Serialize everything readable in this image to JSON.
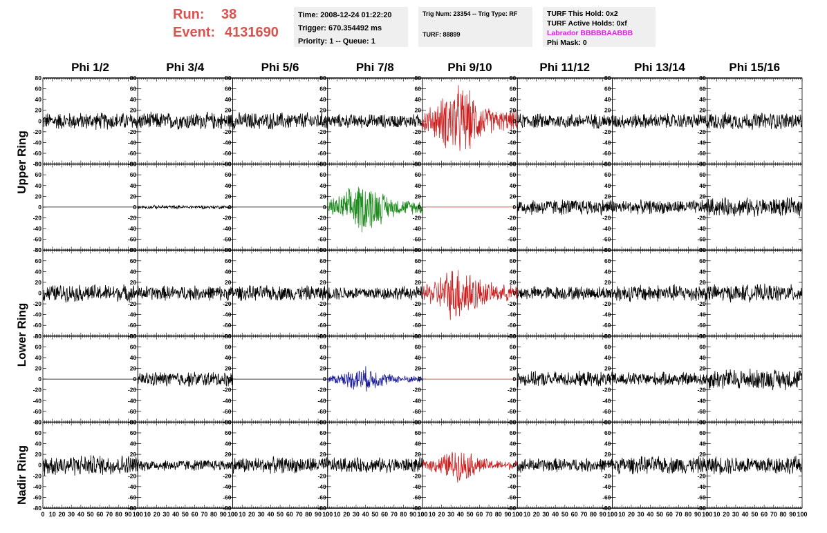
{
  "header": {
    "run_label": "Run:",
    "run_value": "38",
    "event_label": "Event:",
    "event_value": "4131690",
    "time": "Time: 2008-12-24 01:22:20",
    "trigger": "Trigger: 670.354492 ms",
    "priority": "Priority: 1 -- Queue: 1",
    "trig_num": "Trig Num: 23354 -- Trig Type: RF",
    "turf": "TURF: 88899",
    "turf_hold": "TURF This Hold: 0x2",
    "turf_active": "TURF Active Holds: 0xf",
    "labrador": "Labrador BBBBBAABBB",
    "phi_mask": "Phi Mask: 0"
  },
  "colors": {
    "title_red": "#d9534f",
    "red": "#cc2020",
    "green": "#1a8a1a",
    "blue": "#1a1a9a",
    "black": "#000000",
    "magenta": "#e020e0"
  },
  "chart_data": {
    "type": "line",
    "columns": [
      "Phi 1/2",
      "Phi 3/4",
      "Phi 5/6",
      "Phi 7/8",
      "Phi 9/10",
      "Phi 11/12",
      "Phi 13/14",
      "Phi 15/16"
    ],
    "ring_labels": [
      "Upper Ring",
      "Lower Ring",
      "Nadir Ring"
    ],
    "xlim": [
      0,
      100
    ],
    "ylim": [
      -80,
      80
    ],
    "x_ticks": [
      "0",
      "10",
      "20",
      "30",
      "40",
      "50",
      "60",
      "70",
      "80",
      "90",
      "100"
    ],
    "y_ticks": [
      "-80",
      "-60",
      "-40",
      "-20",
      "0",
      "20",
      "40",
      "60",
      "80"
    ],
    "rows": [
      {
        "amplitudes": [
          15,
          15,
          15,
          12,
          50,
          13,
          13,
          15
        ],
        "colors": [
          "black",
          "black",
          "black",
          "black",
          "red",
          "black",
          "black",
          "black"
        ]
      },
      {
        "amplitudes": [
          0,
          3,
          0,
          35,
          0,
          14,
          12,
          16
        ],
        "colors": [
          "black",
          "black",
          "black",
          "green",
          "red",
          "black",
          "black",
          "black"
        ]
      },
      {
        "amplitudes": [
          15,
          13,
          13,
          12,
          40,
          12,
          15,
          15
        ],
        "colors": [
          "black",
          "black",
          "black",
          "black",
          "red",
          "black",
          "black",
          "black"
        ]
      },
      {
        "amplitudes": [
          0,
          13,
          0,
          17,
          0,
          13,
          12,
          18
        ],
        "colors": [
          "black",
          "black",
          "black",
          "blue",
          "red",
          "black",
          "black",
          "black"
        ]
      },
      {
        "amplitudes": [
          18,
          10,
          14,
          13,
          22,
          12,
          15,
          16
        ],
        "colors": [
          "black",
          "black",
          "black",
          "black",
          "red",
          "black",
          "black",
          "black"
        ]
      }
    ]
  }
}
